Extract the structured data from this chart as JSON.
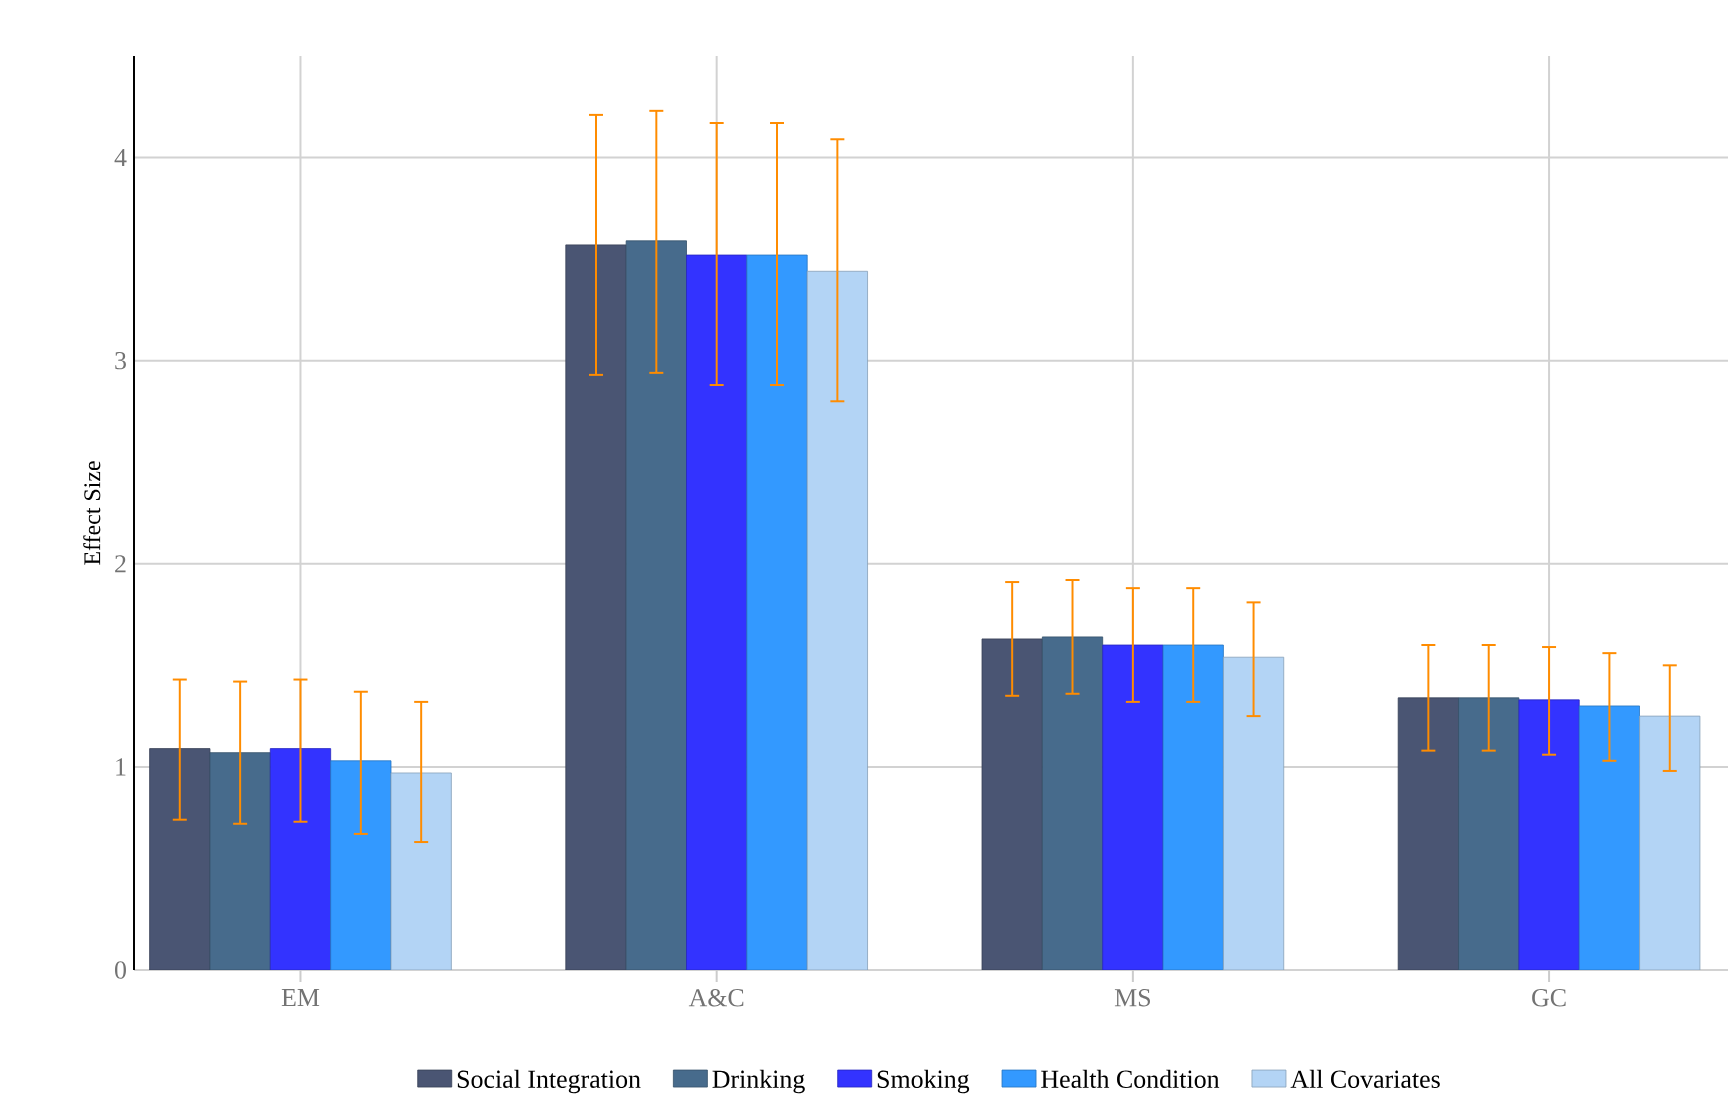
{
  "chart_data": {
    "type": "bar",
    "ylabel": "Effect Size",
    "categories": [
      "EM",
      "A&C",
      "MS",
      "GC"
    ],
    "series": [
      {
        "name": "Social Integration",
        "color": "#4a5573",
        "values": [
          1.09,
          3.57,
          1.63,
          1.34
        ],
        "errors": [
          [
            0.74,
            1.43
          ],
          [
            2.93,
            4.21
          ],
          [
            1.35,
            1.91
          ],
          [
            1.08,
            1.6
          ]
        ]
      },
      {
        "name": "Drinking",
        "color": "#476b8c",
        "values": [
          1.07,
          3.59,
          1.64,
          1.34
        ],
        "errors": [
          [
            0.72,
            1.42
          ],
          [
            2.94,
            4.23
          ],
          [
            1.36,
            1.92
          ],
          [
            1.08,
            1.6
          ]
        ]
      },
      {
        "name": "Smoking",
        "color": "#3333ff",
        "values": [
          1.09,
          3.52,
          1.6,
          1.33
        ],
        "errors": [
          [
            0.73,
            1.43
          ],
          [
            2.88,
            4.17
          ],
          [
            1.32,
            1.88
          ],
          [
            1.06,
            1.59
          ]
        ]
      },
      {
        "name": "Health Condition",
        "color": "#3399ff",
        "values": [
          1.03,
          3.52,
          1.6,
          1.3
        ],
        "errors": [
          [
            0.67,
            1.37
          ],
          [
            2.88,
            4.17
          ],
          [
            1.32,
            1.88
          ],
          [
            1.03,
            1.56
          ]
        ]
      },
      {
        "name": "All Covariates",
        "color": "#b3d4f5",
        "values": [
          0.97,
          3.44,
          1.54,
          1.25
        ],
        "errors": [
          [
            0.63,
            1.32
          ],
          [
            2.8,
            4.09
          ],
          [
            1.25,
            1.81
          ],
          [
            0.98,
            1.5
          ]
        ]
      }
    ],
    "ylim": [
      0,
      4.5
    ],
    "yticks": [
      0,
      1,
      2,
      3,
      4
    ],
    "grid": true,
    "legend": "bottom"
  }
}
